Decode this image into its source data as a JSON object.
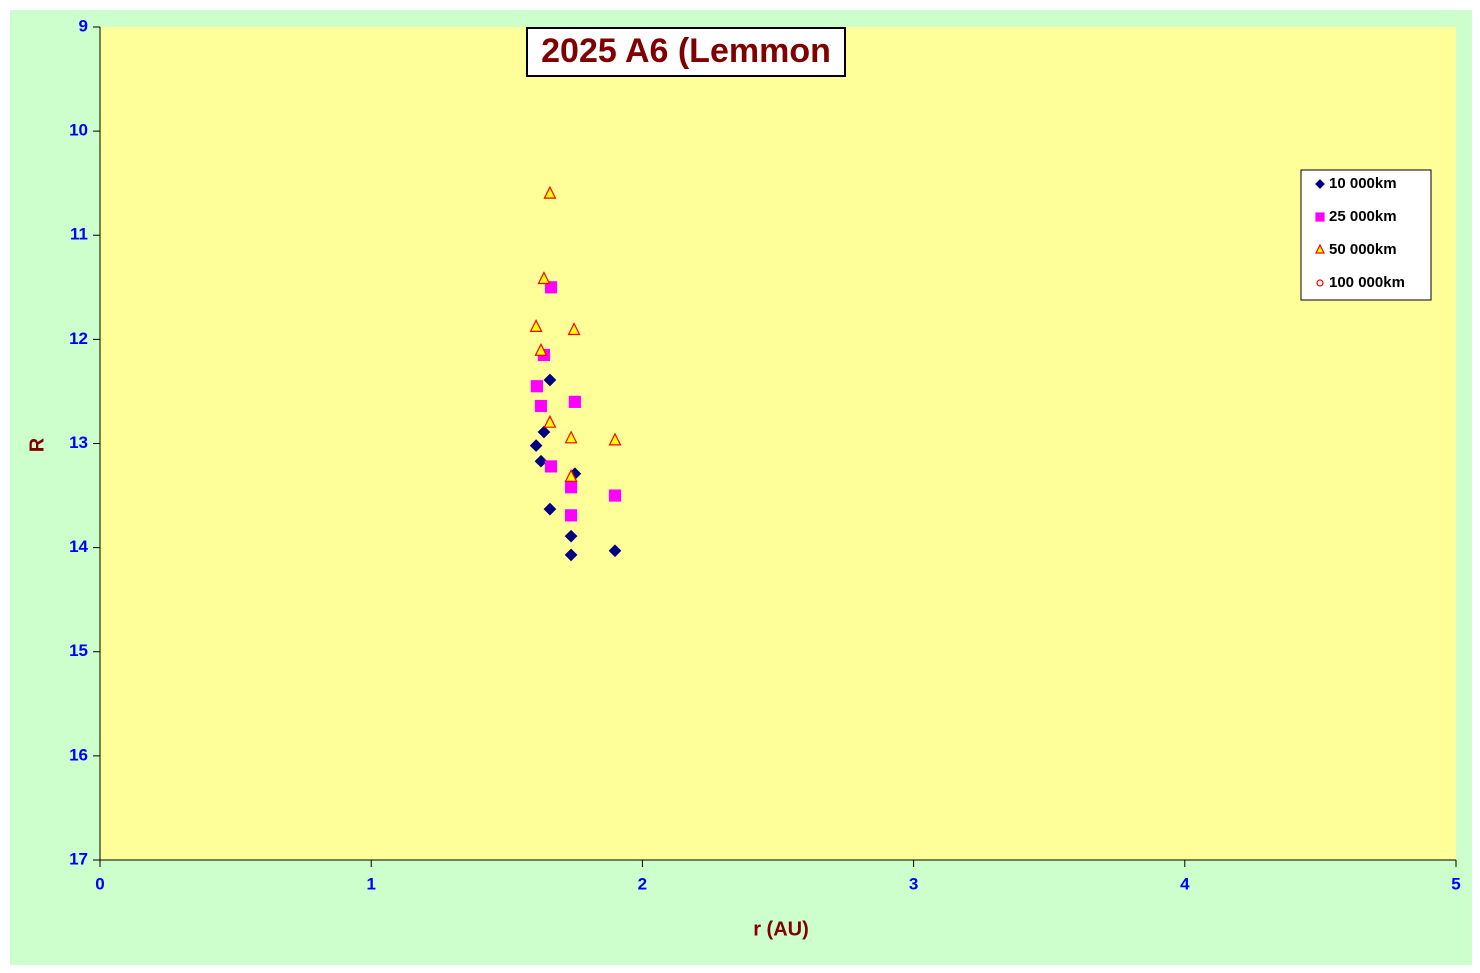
{
  "chart_data": {
    "type": "scatter",
    "title": "2025 A6 (Lemmon",
    "xlabel": "r (AU)",
    "ylabel": "R",
    "xlim": [
      0,
      5
    ],
    "xticks": [
      0,
      1,
      2,
      3,
      4,
      5
    ],
    "ylim": [
      9,
      17
    ],
    "yticks": [
      9,
      10,
      11,
      12,
      13,
      14,
      15,
      16,
      17
    ],
    "y_inverted": true,
    "legend": "right",
    "series": [
      {
        "name": "10 000km",
        "color": "#000080",
        "marker": "diamond",
        "x": [
          1.659,
          1.637,
          1.608,
          1.626,
          1.751,
          1.659,
          1.737,
          1.737,
          1.899
        ],
        "values": [
          12.39,
          12.89,
          13.02,
          13.17,
          13.29,
          13.63,
          13.89,
          14.07,
          14.03
        ]
      },
      {
        "name": "25 000km",
        "color": "#ff00ff",
        "marker": "square",
        "x": [
          1.663,
          1.637,
          1.611,
          1.626,
          1.751,
          1.663,
          1.737,
          1.737,
          1.899
        ],
        "values": [
          11.5,
          12.15,
          12.45,
          12.64,
          12.6,
          13.22,
          13.42,
          13.69,
          13.5
        ]
      },
      {
        "name": "50 000km",
        "color": "#ffff00",
        "edge": "#ff0000",
        "marker": "triangle",
        "x": [
          1.659,
          1.637,
          1.608,
          1.748,
          1.626,
          1.659,
          1.737,
          1.899,
          1.737
        ],
        "values": [
          10.6,
          11.42,
          11.88,
          11.91,
          12.11,
          12.8,
          12.95,
          12.97,
          13.32
        ]
      },
      {
        "name": "100 000km",
        "color": "#ffffff",
        "edge": "#ff0000",
        "marker": "circle",
        "x": [],
        "values": []
      }
    ]
  }
}
